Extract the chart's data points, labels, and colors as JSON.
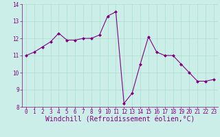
{
  "x": [
    0,
    1,
    2,
    3,
    4,
    5,
    6,
    7,
    8,
    9,
    10,
    11,
    12,
    13,
    14,
    15,
    16,
    17,
    18,
    19,
    20,
    21,
    22,
    23
  ],
  "y": [
    11.0,
    11.2,
    11.5,
    11.8,
    12.3,
    11.9,
    11.9,
    12.0,
    12.0,
    12.2,
    13.3,
    13.55,
    8.2,
    8.8,
    10.5,
    12.1,
    11.2,
    11.0,
    11.0,
    10.5,
    10.0,
    9.5,
    9.5,
    9.6
  ],
  "line_color": "#800080",
  "marker": "D",
  "marker_size": 2,
  "bg_color": "#cceee8",
  "grid_color": "#aaddcc",
  "xlabel": "Windchill (Refroidissement éolien,°C)",
  "ylabel": "",
  "ylim": [
    8,
    14
  ],
  "xlim": [
    -0.5,
    23.5
  ],
  "yticks": [
    8,
    9,
    10,
    11,
    12,
    13,
    14
  ],
  "xticks": [
    0,
    1,
    2,
    3,
    4,
    5,
    6,
    7,
    8,
    9,
    10,
    11,
    12,
    13,
    14,
    15,
    16,
    17,
    18,
    19,
    20,
    21,
    22,
    23
  ],
  "tick_label_color": "#800080",
  "tick_fontsize": 5.5,
  "xlabel_fontsize": 7,
  "spine_color": "#800080",
  "fig_width": 3.2,
  "fig_height": 2.0,
  "dpi": 100
}
